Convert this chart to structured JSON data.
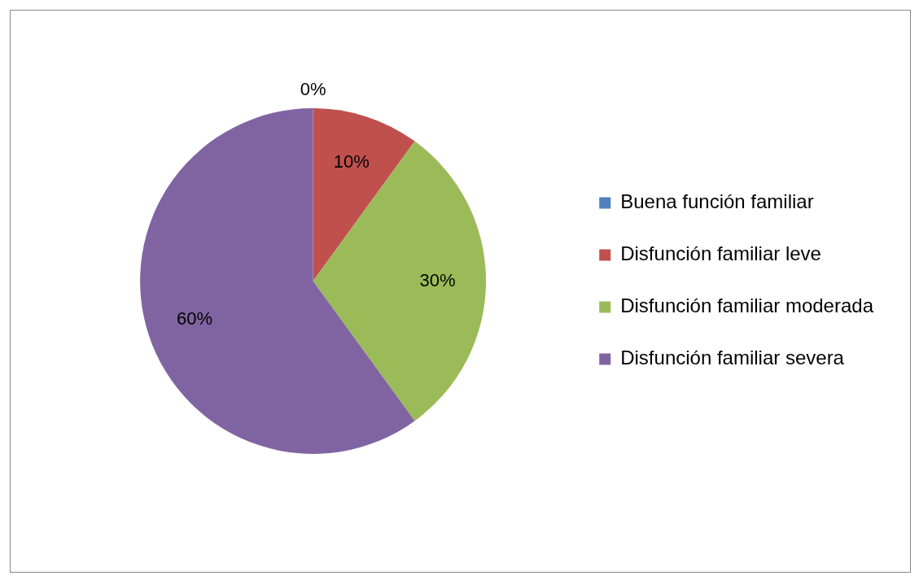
{
  "chart_data": {
    "type": "pie",
    "categories": [
      "Buena función familiar",
      "Disfunción familiar leve",
      "Disfunción familiar moderada",
      "Disfunción familiar severa"
    ],
    "values": [
      0,
      10,
      30,
      60
    ],
    "colors": [
      "#4f81bd",
      "#c0504d",
      "#9bbb59",
      "#8064a2"
    ],
    "value_labels": [
      "0%",
      "10%",
      "30%",
      "60%"
    ],
    "legend": "right"
  }
}
